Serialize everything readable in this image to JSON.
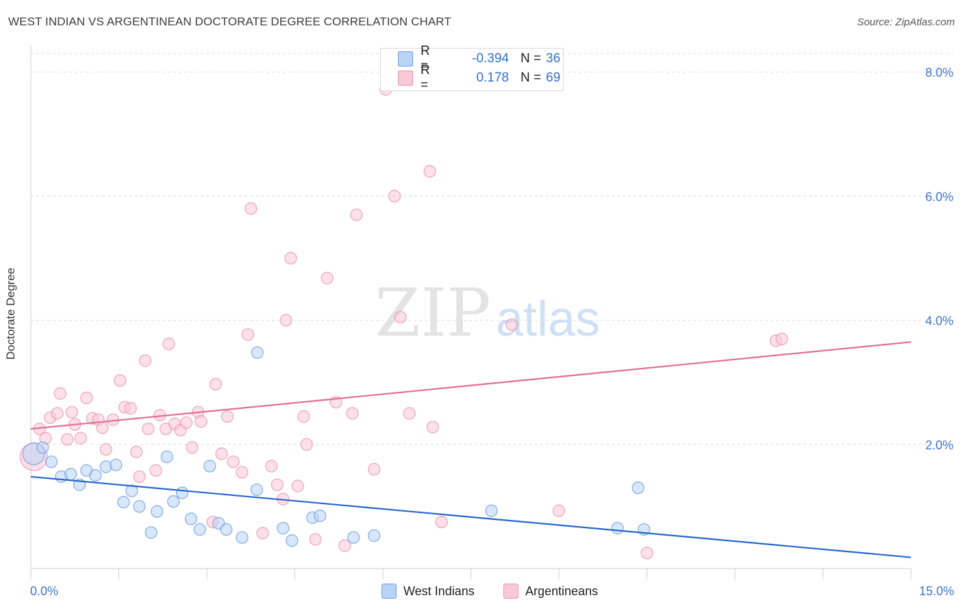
{
  "title": "WEST INDIAN VS ARGENTINEAN DOCTORATE DEGREE CORRELATION CHART",
  "source": "Source: ZipAtlas.com",
  "watermark": {
    "zip": "ZIP",
    "atlas": "atlas"
  },
  "legend": {
    "r_label": "R =",
    "n_label": "N =",
    "rows": [
      {
        "r": "-0.394",
        "n": "36",
        "fill": "#b9d3f5",
        "stroke": "#6e9ee3"
      },
      {
        "r": "0.178",
        "n": "69",
        "fill": "#f9c9d7",
        "stroke": "#ec93ae"
      }
    ]
  },
  "chart_data": {
    "type": "scatter",
    "title": "WEST INDIAN VS ARGENTINEAN DOCTORATE DEGREE CORRELATION CHART",
    "xlabel": "",
    "ylabel": "Doctorate Degree",
    "xlim": [
      0,
      15
    ],
    "ylim": [
      0,
      8.3
    ],
    "x_tick_labels": [
      "0.0%",
      "15.0%"
    ],
    "y_ticks": [
      2,
      4,
      6,
      8
    ],
    "y_tick_labels": [
      "2.0%",
      "4.0%",
      "6.0%",
      "8.0%"
    ],
    "grid": true,
    "series": [
      {
        "name": "West Indians",
        "color": "#6e9ee3",
        "fill": "#b9d3f5",
        "trend": {
          "x": [
            0,
            15
          ],
          "y": [
            1.48,
            0.18
          ],
          "color": "#2566d0"
        },
        "points": [
          [
            0.05,
            1.85
          ],
          [
            0.2,
            1.95
          ],
          [
            0.35,
            1.72
          ],
          [
            0.52,
            1.48
          ],
          [
            0.68,
            1.52
          ],
          [
            0.83,
            1.35
          ],
          [
            0.95,
            1.58
          ],
          [
            1.1,
            1.5
          ],
          [
            1.28,
            1.64
          ],
          [
            1.45,
            1.67
          ],
          [
            1.58,
            1.07
          ],
          [
            1.72,
            1.25
          ],
          [
            1.85,
            1.0
          ],
          [
            2.05,
            0.58
          ],
          [
            2.15,
            0.92
          ],
          [
            2.32,
            1.8
          ],
          [
            2.43,
            1.08
          ],
          [
            2.58,
            1.22
          ],
          [
            2.73,
            0.8
          ],
          [
            2.88,
            0.63
          ],
          [
            3.05,
            1.65
          ],
          [
            3.2,
            0.73
          ],
          [
            3.33,
            0.63
          ],
          [
            3.6,
            0.5
          ],
          [
            3.85,
            1.27
          ],
          [
            3.86,
            3.48
          ],
          [
            4.3,
            0.65
          ],
          [
            4.45,
            0.45
          ],
          [
            4.8,
            0.82
          ],
          [
            4.93,
            0.85
          ],
          [
            5.5,
            0.5
          ],
          [
            5.85,
            0.53
          ],
          [
            7.85,
            0.93
          ],
          [
            10.0,
            0.65
          ],
          [
            10.35,
            1.3
          ],
          [
            10.45,
            0.63
          ]
        ]
      },
      {
        "name": "Argentineans",
        "color": "#ec93ae",
        "fill": "#f9c9d7",
        "trend": {
          "x": [
            0,
            15
          ],
          "y": [
            2.25,
            3.65
          ],
          "color": "#e46c95"
        },
        "points": [
          [
            0.05,
            1.8
          ],
          [
            0.15,
            2.25
          ],
          [
            0.25,
            2.1
          ],
          [
            0.33,
            2.43
          ],
          [
            0.45,
            2.5
          ],
          [
            0.5,
            2.82
          ],
          [
            0.62,
            2.08
          ],
          [
            0.7,
            2.52
          ],
          [
            0.75,
            2.32
          ],
          [
            0.85,
            2.1
          ],
          [
            0.95,
            2.75
          ],
          [
            1.05,
            2.42
          ],
          [
            1.15,
            2.4
          ],
          [
            1.22,
            2.27
          ],
          [
            1.28,
            1.92
          ],
          [
            1.4,
            2.4
          ],
          [
            1.52,
            3.03
          ],
          [
            1.6,
            2.6
          ],
          [
            1.7,
            2.58
          ],
          [
            1.8,
            1.88
          ],
          [
            1.85,
            1.48
          ],
          [
            1.95,
            3.35
          ],
          [
            2.0,
            2.25
          ],
          [
            2.13,
            1.58
          ],
          [
            2.2,
            2.47
          ],
          [
            2.3,
            2.25
          ],
          [
            2.35,
            3.62
          ],
          [
            2.45,
            2.33
          ],
          [
            2.55,
            2.23
          ],
          [
            2.65,
            2.35
          ],
          [
            2.75,
            1.95
          ],
          [
            2.85,
            2.52
          ],
          [
            2.9,
            2.37
          ],
          [
            3.1,
            0.75
          ],
          [
            3.15,
            2.97
          ],
          [
            3.25,
            1.85
          ],
          [
            3.35,
            2.45
          ],
          [
            3.45,
            1.72
          ],
          [
            3.6,
            1.55
          ],
          [
            3.7,
            3.77
          ],
          [
            3.75,
            5.8
          ],
          [
            3.95,
            0.57
          ],
          [
            4.1,
            1.65
          ],
          [
            4.2,
            1.35
          ],
          [
            4.3,
            1.12
          ],
          [
            4.35,
            4.0
          ],
          [
            4.43,
            5.0
          ],
          [
            4.55,
            1.33
          ],
          [
            4.65,
            2.45
          ],
          [
            4.7,
            2.0
          ],
          [
            4.85,
            0.47
          ],
          [
            5.05,
            4.68
          ],
          [
            5.2,
            2.68
          ],
          [
            5.35,
            0.37
          ],
          [
            5.48,
            2.5
          ],
          [
            5.55,
            5.7
          ],
          [
            5.85,
            1.6
          ],
          [
            6.05,
            7.72
          ],
          [
            6.2,
            6.0
          ],
          [
            6.3,
            4.05
          ],
          [
            6.45,
            2.5
          ],
          [
            6.8,
            6.4
          ],
          [
            6.85,
            2.28
          ],
          [
            7.0,
            0.75
          ],
          [
            8.2,
            3.93
          ],
          [
            9.0,
            0.93
          ],
          [
            10.5,
            0.25
          ],
          [
            12.7,
            3.67
          ],
          [
            12.8,
            3.7
          ]
        ]
      }
    ]
  }
}
